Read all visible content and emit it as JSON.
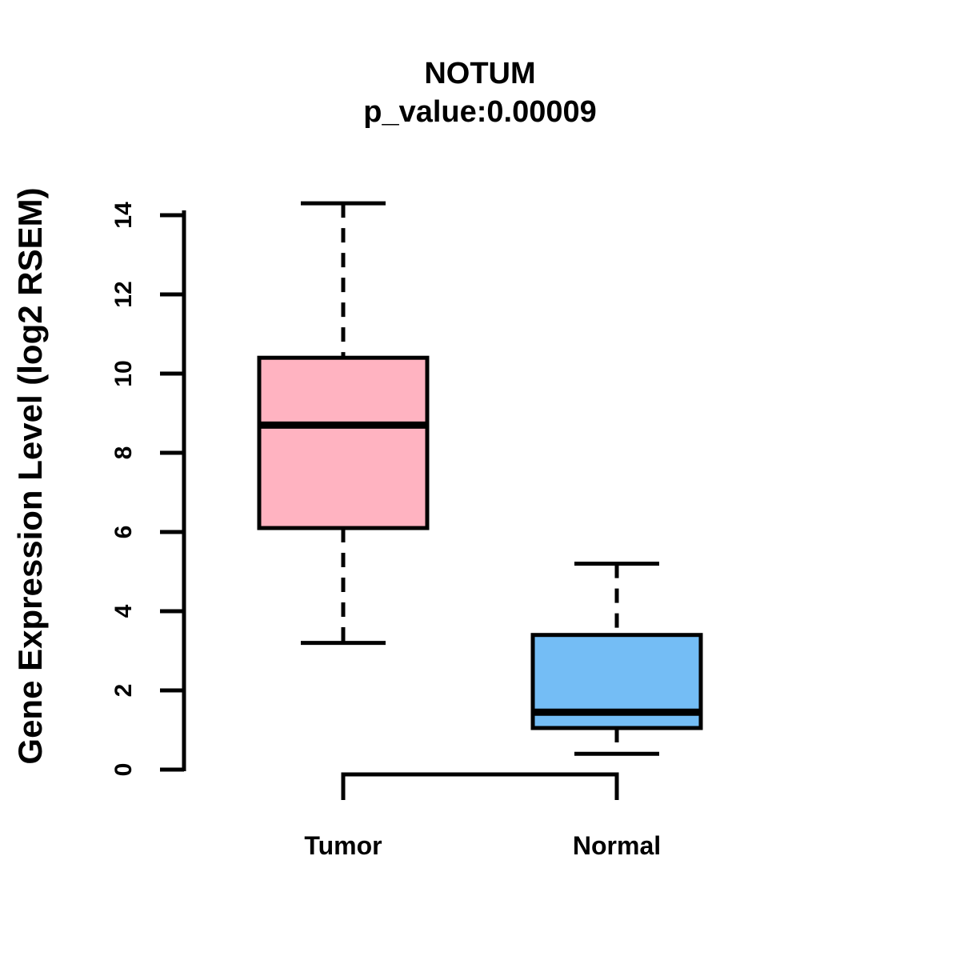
{
  "chart_data": {
    "type": "boxplot",
    "title": "NOTUM",
    "subtitle": "p_value:0.00009",
    "ylabel": "Gene Expression Level (log2 RSEM)",
    "xlabel": "",
    "yticks": [
      0,
      2,
      4,
      6,
      8,
      10,
      12,
      14
    ],
    "ylim": [
      0,
      14.3
    ],
    "grid": false,
    "legend": "none",
    "colors": {
      "tumor_fill": "#FFB3C1",
      "normal_fill": "#74BDF5",
      "stroke": "#000000",
      "background": "#FFFFFF"
    },
    "groups": [
      {
        "label": "Tumor",
        "fill_color": "#FFB3C1",
        "whisker_low": 3.2,
        "q1": 6.1,
        "median": 8.7,
        "q3": 10.4,
        "whisker_high": 14.3
      },
      {
        "label": "Normal",
        "fill_color": "#74BDF5",
        "whisker_low": 0.4,
        "q1": 1.05,
        "median": 1.45,
        "q3": 3.4,
        "whisker_high": 5.2
      }
    ]
  }
}
